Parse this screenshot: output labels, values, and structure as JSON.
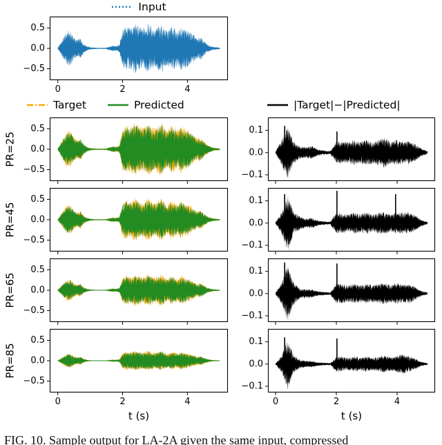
{
  "figure": {
    "caption": "FIG. 10.  Sample output for LA-2A given the same input, compressed",
    "xlabel": "t (s)"
  },
  "legends": {
    "input": {
      "label": "Input",
      "color": "#1f77b4",
      "linestyle": "dotted"
    },
    "target": {
      "label": "Target",
      "color": "#ffa500",
      "linestyle": "dashdot"
    },
    "predicted": {
      "label": "Predicted",
      "color": "#228b22",
      "linestyle": "solid"
    },
    "difference": {
      "label": "|Target|−|Predicted|",
      "color": "#000000",
      "linestyle": "solid"
    }
  },
  "chart_data": {
    "type": "line",
    "title": "",
    "xlabel": "t (s)",
    "x_range": [
      0,
      5
    ],
    "xticks": [
      0,
      2,
      4
    ],
    "amp_ylim": [
      -0.78,
      0.78
    ],
    "amp_yticks": [
      0.5,
      0.0,
      -0.5
    ],
    "diff_ylim": [
      -0.128,
      0.158
    ],
    "diff_yticks": [
      0.1,
      0.0,
      -0.1
    ],
    "envelope_dt": 0.1,
    "diff_dt": 0.2,
    "input_envelope": [
      0.02,
      0.16,
      0.32,
      0.44,
      0.42,
      0.28,
      0.22,
      0.26,
      0.12,
      0.06,
      0.03,
      0.02,
      0.015,
      0.015,
      0.015,
      0.02,
      0.05,
      0.07,
      0.06,
      0.09,
      0.48,
      0.58,
      0.52,
      0.56,
      0.62,
      0.56,
      0.5,
      0.56,
      0.62,
      0.55,
      0.48,
      0.56,
      0.62,
      0.5,
      0.44,
      0.56,
      0.52,
      0.44,
      0.56,
      0.5,
      0.46,
      0.4,
      0.34,
      0.24,
      0.3,
      0.2,
      0.12,
      0.07,
      0.04,
      0.03,
      0.02
    ],
    "rows": [
      {
        "label": "PR=25",
        "gain": 1.0,
        "diff_envelope": [
          0.004,
          0.06,
          0.12,
          0.05,
          0.03,
          0.025,
          0.03,
          0.015,
          0.01,
          0.008,
          0.05,
          0.05,
          0.05,
          0.06,
          0.05,
          0.06,
          0.05,
          0.06,
          0.07,
          0.05,
          0.06,
          0.05,
          0.055,
          0.04,
          0.02,
          0.006
        ],
        "spikes": [
          {
            "t": 0.3,
            "v": 0.12
          },
          {
            "t": 2.02,
            "v": 0.095
          }
        ]
      },
      {
        "label": "PR=45",
        "gain": 0.8,
        "diff_envelope": [
          0.004,
          0.05,
          0.13,
          0.05,
          0.03,
          0.02,
          0.025,
          0.012,
          0.008,
          0.006,
          0.05,
          0.045,
          0.04,
          0.05,
          0.045,
          0.05,
          0.04,
          0.05,
          0.05,
          0.04,
          0.05,
          0.05,
          0.05,
          0.035,
          0.015,
          0.005
        ],
        "spikes": [
          {
            "t": 0.3,
            "v": 0.13
          },
          {
            "t": 2.02,
            "v": 0.145
          },
          {
            "t": 3.95,
            "v": 0.13
          }
        ]
      },
      {
        "label": "PR=65",
        "gain": 0.6,
        "diff_envelope": [
          0.004,
          0.05,
          0.13,
          0.05,
          0.025,
          0.02,
          0.02,
          0.01,
          0.008,
          0.006,
          0.045,
          0.045,
          0.04,
          0.045,
          0.04,
          0.045,
          0.04,
          0.045,
          0.05,
          0.04,
          0.05,
          0.04,
          0.045,
          0.03,
          0.012,
          0.005
        ],
        "spikes": [
          {
            "t": 0.3,
            "v": 0.14
          },
          {
            "t": 2.02,
            "v": 0.135
          }
        ]
      },
      {
        "label": "PR=85",
        "gain": 0.38,
        "diff_envelope": [
          0.003,
          0.04,
          0.12,
          0.04,
          0.02,
          0.015,
          0.015,
          0.008,
          0.006,
          0.005,
          0.035,
          0.035,
          0.03,
          0.035,
          0.03,
          0.035,
          0.03,
          0.035,
          0.04,
          0.03,
          0.04,
          0.045,
          0.035,
          0.025,
          0.01,
          0.004
        ],
        "spikes": [
          {
            "t": 0.3,
            "v": 0.12
          },
          {
            "t": 2.02,
            "v": 0.115
          }
        ]
      }
    ]
  }
}
